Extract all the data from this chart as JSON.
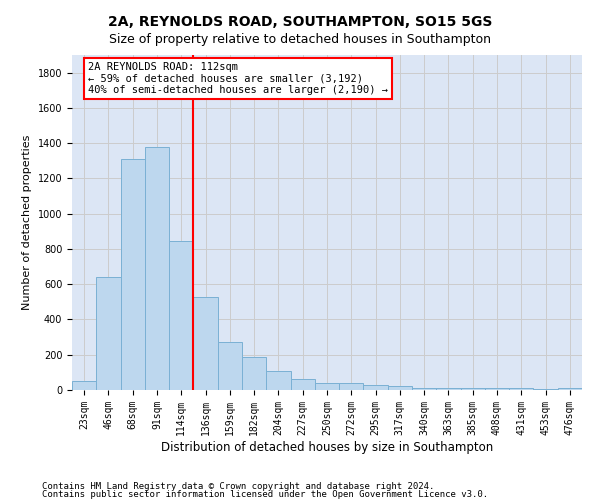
{
  "title1": "2A, REYNOLDS ROAD, SOUTHAMPTON, SO15 5GS",
  "title2": "Size of property relative to detached houses in Southampton",
  "xlabel": "Distribution of detached houses by size in Southampton",
  "ylabel": "Number of detached properties",
  "bin_labels": [
    "23sqm",
    "46sqm",
    "68sqm",
    "91sqm",
    "114sqm",
    "136sqm",
    "159sqm",
    "182sqm",
    "204sqm",
    "227sqm",
    "250sqm",
    "272sqm",
    "295sqm",
    "317sqm",
    "340sqm",
    "363sqm",
    "385sqm",
    "408sqm",
    "431sqm",
    "453sqm",
    "476sqm"
  ],
  "bar_values": [
    50,
    640,
    1310,
    1380,
    845,
    530,
    275,
    185,
    105,
    65,
    40,
    40,
    30,
    20,
    10,
    10,
    10,
    10,
    10,
    5,
    10
  ],
  "bar_color": "#bdd7ee",
  "bar_edge_color": "#7ab0d4",
  "vline_x_idx": 4,
  "vline_color": "red",
  "annotation_text": "2A REYNOLDS ROAD: 112sqm\n← 59% of detached houses are smaller (3,192)\n40% of semi-detached houses are larger (2,190) →",
  "annotation_box_color": "white",
  "annotation_box_edge": "red",
  "footer1": "Contains HM Land Registry data © Crown copyright and database right 2024.",
  "footer2": "Contains public sector information licensed under the Open Government Licence v3.0.",
  "ylim": [
    0,
    1900
  ],
  "grid_color": "#cccccc",
  "bg_color": "#dce6f5",
  "title1_fontsize": 10,
  "title2_fontsize": 9,
  "xlabel_fontsize": 8.5,
  "ylabel_fontsize": 8,
  "tick_fontsize": 7,
  "footer_fontsize": 6.5,
  "annot_fontsize": 7.5
}
